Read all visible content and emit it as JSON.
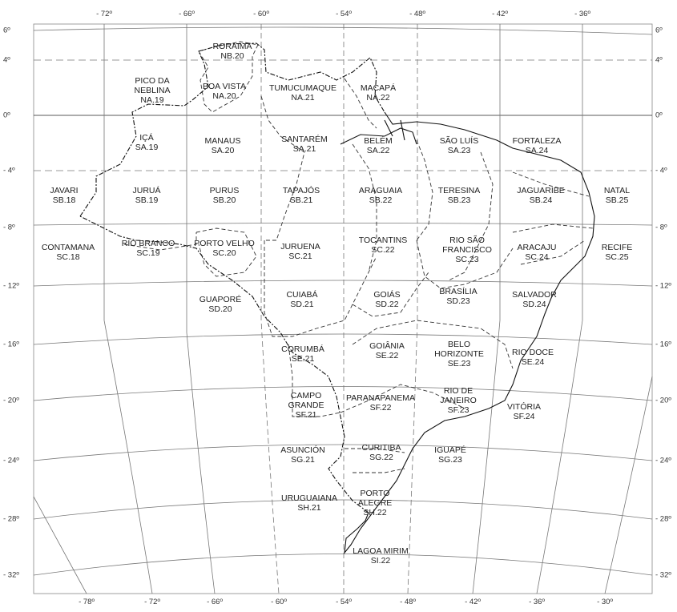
{
  "map": {
    "top_longitudes": [
      "- 72º",
      "- 66º",
      "- 60º",
      "- 54º",
      "- 48º",
      "- 42º",
      "- 36º"
    ],
    "bottom_longitudes": [
      "- 78º",
      "- 72º",
      "- 66º",
      "- 60º",
      "- 54º",
      "- 48º",
      "- 42º",
      "- 36º",
      "- 30º"
    ],
    "left_latitudes": [
      "6º",
      "4º",
      "0º",
      "- 4º",
      "- 8º",
      "- 12º",
      "- 16º",
      "- 20º",
      "- 24º",
      "- 28º",
      "- 32º"
    ],
    "right_latitudes": [
      "6º",
      "4º",
      "0º",
      "- 4º",
      "- 8º",
      "- 12º",
      "- 16º",
      "- 20º",
      "- 24º",
      "- 28º",
      "- 32º"
    ],
    "sheets": [
      {
        "name": "RORAIMA",
        "code": "NB.20"
      },
      {
        "name": "PICO DA NEBLINA",
        "code": "NA.19"
      },
      {
        "name": "BOA VISTA",
        "code": "NA.20"
      },
      {
        "name": "TUMUCUMAQUE",
        "code": "NA.21"
      },
      {
        "name": "MACAPÁ",
        "code": "NA.22"
      },
      {
        "name": "IÇÁ",
        "code": "SA.19"
      },
      {
        "name": "MANAUS",
        "code": "SA.20"
      },
      {
        "name": "SANTARÉM",
        "code": "SA.21"
      },
      {
        "name": "BELÉM",
        "code": "SA.22"
      },
      {
        "name": "SÃO LUÍS",
        "code": "SA.23"
      },
      {
        "name": "FORTALEZA",
        "code": "SA.24"
      },
      {
        "name": "JAVARI",
        "code": "SB.18"
      },
      {
        "name": "JURUÁ",
        "code": "SB.19"
      },
      {
        "name": "PURUS",
        "code": "SB.20"
      },
      {
        "name": "TAPAJÓS",
        "code": "SB.21"
      },
      {
        "name": "ARAGUAIA",
        "code": "SB.22"
      },
      {
        "name": "TERESINA",
        "code": "SB.23"
      },
      {
        "name": "JAGUARIBE",
        "code": "SB.24"
      },
      {
        "name": "NATAL",
        "code": "SB.25"
      },
      {
        "name": "CONTAMANA",
        "code": "SC.18"
      },
      {
        "name": "RIO BRANCO",
        "code": "SC.19"
      },
      {
        "name": "PORTO VELHO",
        "code": "SC.20"
      },
      {
        "name": "JURUENA",
        "code": "SC.21"
      },
      {
        "name": "TOCANTINS",
        "code": "SC.22"
      },
      {
        "name": "RIO SÃO FRANCISCO",
        "code": "SC.23"
      },
      {
        "name": "ARACAJU",
        "code": "SC.24"
      },
      {
        "name": "RECIFE",
        "code": "SC.25"
      },
      {
        "name": "GUAPORÉ",
        "code": "SD.20"
      },
      {
        "name": "CUIABÁ",
        "code": "SD.21"
      },
      {
        "name": "GOIÁS",
        "code": "SD.22"
      },
      {
        "name": "BRASÍLIA",
        "code": "SD.23"
      },
      {
        "name": "SALVADOR",
        "code": "SD.24"
      },
      {
        "name": "CORUMBÁ",
        "code": "SE.21"
      },
      {
        "name": "GOIÂNIA",
        "code": "SE.22"
      },
      {
        "name": "BELO HORIZONTE",
        "code": "SE.23"
      },
      {
        "name": "RIO DOCE",
        "code": "SE.24"
      },
      {
        "name": "CAMPO GRANDE",
        "code": "SF.21"
      },
      {
        "name": "PARANAPANEMA",
        "code": "SF.22"
      },
      {
        "name": "RIO DE JANEIRO",
        "code": "SF.23"
      },
      {
        "name": "VITÓRIA",
        "code": "SF.24"
      },
      {
        "name": "ASUNCIÓN",
        "code": "SG.21"
      },
      {
        "name": "CURITIBA",
        "code": "SG.22"
      },
      {
        "name": "IGUAPÉ",
        "code": "SG.23"
      },
      {
        "name": "URUGUAIANA",
        "code": "SH.21"
      },
      {
        "name": "PORTO ALEGRE",
        "code": "SH.22"
      },
      {
        "name": "LAGOA MIRIM",
        "code": "SI.22"
      }
    ]
  }
}
